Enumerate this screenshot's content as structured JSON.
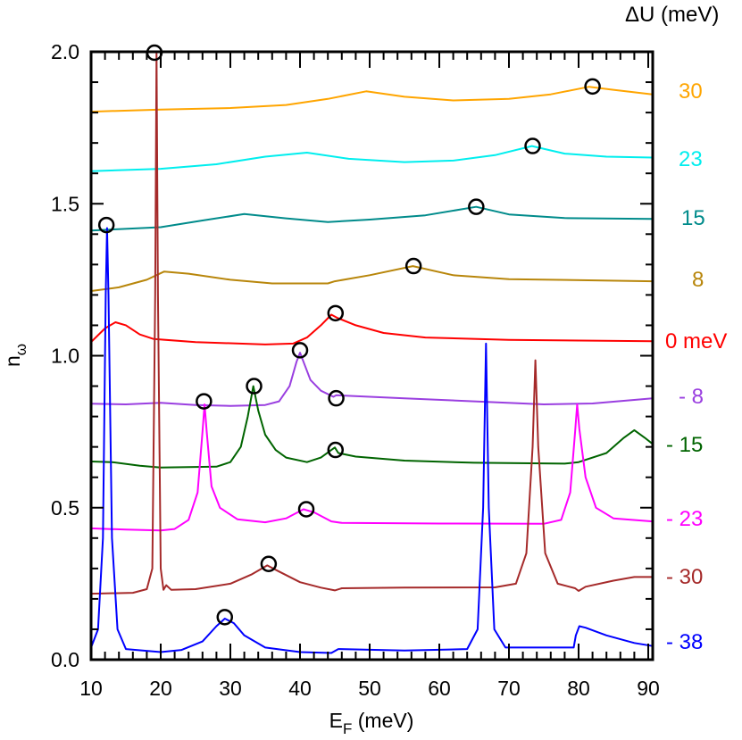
{
  "chart_data": {
    "type": "line",
    "title": "",
    "xlabel": "E",
    "xlabel_sub": "F",
    "xlabel_unit": " (meV)",
    "ylabel": "n",
    "ylabel_sub": "ω",
    "xlim": [
      10,
      90.6
    ],
    "ylim": [
      0,
      2.0
    ],
    "xticks": [
      "10",
      "20",
      "30",
      "40",
      "50",
      "60",
      "70",
      "80",
      "90"
    ],
    "yticks": [
      "0.0",
      "0.5",
      "1.0",
      "1.5",
      "2.0"
    ],
    "grid": false,
    "legend_title": "ΔU (meV)",
    "legend_placement": "right",
    "marker_color": "#000000",
    "series": [
      {
        "name": "30",
        "color": "#FFA500",
        "points": [
          [
            10,
            1.803
          ],
          [
            20,
            1.81
          ],
          [
            30,
            1.815
          ],
          [
            38,
            1.825
          ],
          [
            44,
            1.845
          ],
          [
            49.5,
            1.87
          ],
          [
            55,
            1.852
          ],
          [
            62,
            1.84
          ],
          [
            70,
            1.845
          ],
          [
            76,
            1.86
          ],
          [
            81.5,
            1.885
          ],
          [
            85,
            1.875
          ],
          [
            90.6,
            1.86
          ]
        ],
        "markers": [
          [
            82,
            1.886
          ]
        ]
      },
      {
        "name": "23",
        "color": "#00EEEE",
        "points": [
          [
            10,
            1.607
          ],
          [
            20,
            1.615
          ],
          [
            28,
            1.63
          ],
          [
            35,
            1.655
          ],
          [
            41,
            1.668
          ],
          [
            47,
            1.648
          ],
          [
            55,
            1.637
          ],
          [
            62,
            1.642
          ],
          [
            68,
            1.66
          ],
          [
            73.3,
            1.69
          ],
          [
            78,
            1.665
          ],
          [
            84,
            1.655
          ],
          [
            90.6,
            1.652
          ]
        ],
        "markers": [
          [
            73.4,
            1.69
          ]
        ]
      },
      {
        "name": "15",
        "color": "#008B8B",
        "points": [
          [
            10,
            1.412
          ],
          [
            20,
            1.423
          ],
          [
            26,
            1.445
          ],
          [
            32,
            1.466
          ],
          [
            38,
            1.452
          ],
          [
            44,
            1.44
          ],
          [
            50,
            1.448
          ],
          [
            58,
            1.462
          ],
          [
            65.3,
            1.49
          ],
          [
            70,
            1.465
          ],
          [
            78,
            1.453
          ],
          [
            90.6,
            1.45
          ]
        ],
        "markers": [
          [
            12.2,
            1.43
          ],
          [
            65.3,
            1.49
          ]
        ]
      },
      {
        "name": "8",
        "color": "#B8860B",
        "points": [
          [
            10,
            1.213
          ],
          [
            14,
            1.225
          ],
          [
            18,
            1.25
          ],
          [
            20.5,
            1.277
          ],
          [
            24,
            1.27
          ],
          [
            30,
            1.25
          ],
          [
            36,
            1.238
          ],
          [
            44,
            1.238
          ],
          [
            45,
            1.245
          ],
          [
            50,
            1.265
          ],
          [
            56.2,
            1.295
          ],
          [
            62,
            1.265
          ],
          [
            70,
            1.252
          ],
          [
            90.6,
            1.245
          ]
        ],
        "markers": [
          [
            56.3,
            1.295
          ]
        ]
      },
      {
        "name": "0 meV",
        "color": "#FF0000",
        "points": [
          [
            10,
            1.045
          ],
          [
            12,
            1.09
          ],
          [
            13.5,
            1.11
          ],
          [
            15,
            1.1
          ],
          [
            17,
            1.07
          ],
          [
            19,
            1.055
          ],
          [
            25,
            1.045
          ],
          [
            35,
            1.037
          ],
          [
            39,
            1.04
          ],
          [
            41,
            1.06
          ],
          [
            43,
            1.1
          ],
          [
            44.5,
            1.135
          ],
          [
            45.3,
            1.125
          ],
          [
            48,
            1.1
          ],
          [
            52,
            1.075
          ],
          [
            58,
            1.06
          ],
          [
            70,
            1.052
          ],
          [
            90.6,
            1.048
          ]
        ],
        "markers": [
          [
            45.1,
            1.14
          ]
        ]
      },
      {
        "name": "- 8",
        "color": "#9A3FE0",
        "points": [
          [
            10,
            0.842
          ],
          [
            15,
            0.84
          ],
          [
            20,
            0.845
          ],
          [
            25,
            0.838
          ],
          [
            30,
            0.835
          ],
          [
            35,
            0.838
          ],
          [
            37,
            0.85
          ],
          [
            38.5,
            0.9
          ],
          [
            39.5,
            0.98
          ],
          [
            40,
            1.01
          ],
          [
            40.5,
            0.98
          ],
          [
            41.5,
            0.92
          ],
          [
            43,
            0.885
          ],
          [
            44.8,
            0.865
          ],
          [
            45.2,
            0.87
          ],
          [
            55,
            0.86
          ],
          [
            65,
            0.85
          ],
          [
            75,
            0.84
          ],
          [
            82,
            0.843
          ],
          [
            90.6,
            0.86
          ]
        ],
        "markers": [
          [
            40,
            1.018
          ],
          [
            45.2,
            0.86
          ]
        ]
      },
      {
        "name": "- 15",
        "color": "#006400",
        "points": [
          [
            10,
            0.652
          ],
          [
            13,
            0.65
          ],
          [
            17,
            0.638
          ],
          [
            20,
            0.632
          ],
          [
            28,
            0.635
          ],
          [
            30,
            0.65
          ],
          [
            31.5,
            0.7
          ],
          [
            32.5,
            0.8
          ],
          [
            33.3,
            0.9
          ],
          [
            34,
            0.82
          ],
          [
            35,
            0.74
          ],
          [
            36.5,
            0.69
          ],
          [
            38,
            0.665
          ],
          [
            41,
            0.65
          ],
          [
            43,
            0.665
          ],
          [
            44.5,
            0.69
          ],
          [
            45,
            0.698
          ],
          [
            45.5,
            0.68
          ],
          [
            48,
            0.668
          ],
          [
            55,
            0.655
          ],
          [
            65,
            0.648
          ],
          [
            78,
            0.645
          ],
          [
            80,
            0.65
          ],
          [
            84,
            0.68
          ],
          [
            86.5,
            0.73
          ],
          [
            88,
            0.755
          ],
          [
            89.5,
            0.73
          ],
          [
            90.6,
            0.71
          ]
        ],
        "markers": [
          [
            33.4,
            0.9
          ],
          [
            45.1,
            0.69
          ]
        ]
      },
      {
        "name": "- 23",
        "color": "#FF00FF",
        "points": [
          [
            10,
            0.432
          ],
          [
            15,
            0.428
          ],
          [
            20,
            0.425
          ],
          [
            22,
            0.43
          ],
          [
            24,
            0.46
          ],
          [
            25.3,
            0.55
          ],
          [
            26,
            0.75
          ],
          [
            26.3,
            0.84
          ],
          [
            26.6,
            0.75
          ],
          [
            27.3,
            0.57
          ],
          [
            28.5,
            0.5
          ],
          [
            31,
            0.462
          ],
          [
            35,
            0.452
          ],
          [
            38,
            0.465
          ],
          [
            40.5,
            0.495
          ],
          [
            42,
            0.485
          ],
          [
            44.5,
            0.455
          ],
          [
            46,
            0.45
          ],
          [
            60,
            0.448
          ],
          [
            75,
            0.447
          ],
          [
            77.5,
            0.46
          ],
          [
            78.8,
            0.55
          ],
          [
            79.5,
            0.75
          ],
          [
            79.8,
            0.84
          ],
          [
            80.1,
            0.76
          ],
          [
            81,
            0.6
          ],
          [
            82.5,
            0.5
          ],
          [
            85,
            0.465
          ],
          [
            90.6,
            0.455
          ]
        ],
        "markers": [
          [
            26.2,
            0.85
          ],
          [
            40.9,
            0.495
          ]
        ]
      },
      {
        "name": "- 30",
        "color": "#A52A2A",
        "points": [
          [
            10,
            0.217
          ],
          [
            16,
            0.22
          ],
          [
            18,
            0.232
          ],
          [
            18.8,
            0.3
          ],
          [
            19.2,
            1.2
          ],
          [
            19.4,
            2.0
          ],
          [
            19.6,
            1.2
          ],
          [
            20,
            0.3
          ],
          [
            20.4,
            0.23
          ],
          [
            20.8,
            0.245
          ],
          [
            21.5,
            0.23
          ],
          [
            25,
            0.232
          ],
          [
            30,
            0.25
          ],
          [
            33,
            0.28
          ],
          [
            35.3,
            0.31
          ],
          [
            37,
            0.29
          ],
          [
            40,
            0.255
          ],
          [
            43,
            0.237
          ],
          [
            45,
            0.228
          ],
          [
            46,
            0.235
          ],
          [
            55,
            0.237
          ],
          [
            68,
            0.238
          ],
          [
            71,
            0.25
          ],
          [
            72.5,
            0.35
          ],
          [
            73.4,
            0.7
          ],
          [
            73.8,
            0.985
          ],
          [
            74.2,
            0.7
          ],
          [
            75.2,
            0.35
          ],
          [
            77,
            0.25
          ],
          [
            79.5,
            0.235
          ],
          [
            80,
            0.226
          ],
          [
            81,
            0.24
          ],
          [
            85,
            0.26
          ],
          [
            88,
            0.272
          ],
          [
            90.6,
            0.272
          ]
        ],
        "markers": [
          [
            19.1,
            1.997
          ],
          [
            35.5,
            0.315
          ]
        ]
      },
      {
        "name": "- 38",
        "color": "#0000FF",
        "points": [
          [
            10,
            0.04
          ],
          [
            11,
            0.1
          ],
          [
            11.7,
            0.4
          ],
          [
            12.1,
            1.2
          ],
          [
            12.3,
            1.42
          ],
          [
            12.5,
            1.2
          ],
          [
            13,
            0.4
          ],
          [
            13.8,
            0.1
          ],
          [
            15,
            0.035
          ],
          [
            20,
            0.025
          ],
          [
            23,
            0.032
          ],
          [
            26,
            0.06
          ],
          [
            28,
            0.11
          ],
          [
            29.2,
            0.135
          ],
          [
            30.5,
            0.12
          ],
          [
            32,
            0.08
          ],
          [
            35,
            0.04
          ],
          [
            40,
            0.025
          ],
          [
            44.5,
            0.022
          ],
          [
            45.5,
            0.035
          ],
          [
            55,
            0.03
          ],
          [
            64,
            0.035
          ],
          [
            65.5,
            0.1
          ],
          [
            66.3,
            0.5
          ],
          [
            66.7,
            1.04
          ],
          [
            67.1,
            0.5
          ],
          [
            67.9,
            0.1
          ],
          [
            69.5,
            0.04
          ],
          [
            79.3,
            0.04
          ],
          [
            79.6,
            0.08
          ],
          [
            80.1,
            0.11
          ],
          [
            81,
            0.105
          ],
          [
            84,
            0.08
          ],
          [
            88,
            0.055
          ],
          [
            90.6,
            0.045
          ]
        ],
        "markers": [
          [
            29.2,
            0.14
          ]
        ]
      }
    ]
  }
}
